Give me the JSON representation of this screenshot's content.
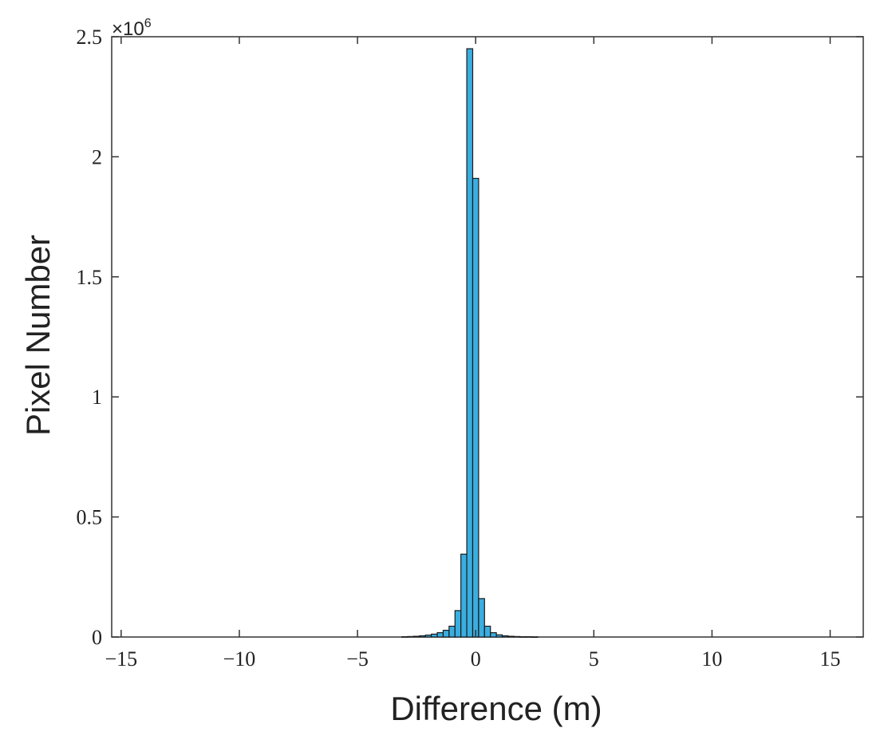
{
  "chart_data": {
    "type": "bar",
    "title": "",
    "xlabel": "Difference (m)",
    "ylabel": "Pixel Number",
    "y_multiplier_label": "×10",
    "y_multiplier_exponent": "6",
    "xlim": [
      -15.4,
      16.4
    ],
    "ylim": [
      0,
      2.5
    ],
    "x_ticks": [
      -15,
      -10,
      -5,
      0,
      5,
      10,
      15
    ],
    "x_tick_labels": [
      "−15",
      "−10",
      "−5",
      "0",
      "5",
      "10",
      "15"
    ],
    "y_ticks": [
      0,
      0.5,
      1,
      1.5,
      2,
      2.5
    ],
    "y_tick_labels": [
      "0",
      "0.5",
      "1",
      "1.5",
      "2",
      "2.5"
    ],
    "bar_width": 0.25,
    "bar_color": "#3aaee0",
    "bar_edge_color": "#1a1a1a",
    "grid": false,
    "series": [
      {
        "x": [
          -3.0,
          -2.75,
          -2.5,
          -2.25,
          -2.0,
          -1.75,
          -1.5,
          -1.25,
          -1.0,
          -0.75,
          -0.5,
          -0.25,
          0.0,
          0.25,
          0.5,
          0.75,
          1.0,
          1.25,
          1.5,
          1.75,
          2.0,
          2.25,
          2.5
        ],
        "values": [
          0.001,
          0.002,
          0.003,
          0.005,
          0.008,
          0.012,
          0.018,
          0.028,
          0.045,
          0.11,
          0.345,
          2.45,
          1.91,
          0.16,
          0.045,
          0.018,
          0.009,
          0.005,
          0.003,
          0.002,
          0.001,
          0.001,
          0.0005
        ]
      }
    ]
  }
}
